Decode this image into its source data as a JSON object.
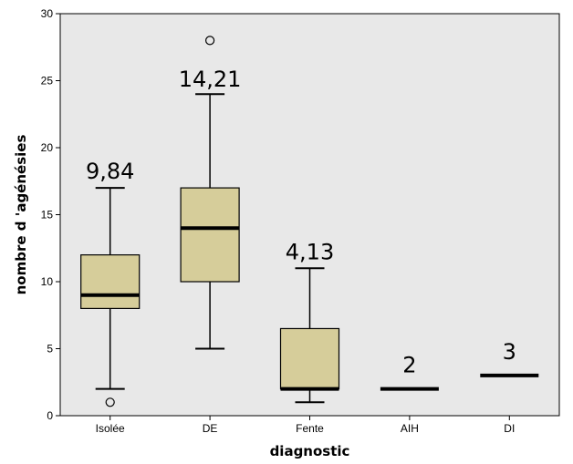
{
  "chart_data": {
    "type": "box",
    "xlabel": "diagnostic",
    "ylabel": "nombre d 'agénésies",
    "ylim": [
      0,
      30
    ],
    "yticks": [
      0,
      5,
      10,
      15,
      20,
      25,
      30
    ],
    "grid": false,
    "colors": {
      "plot_background": "#e8e8e8",
      "box_fill": "#d6cd9a",
      "stroke": "#000000"
    },
    "categories": [
      "Isolée",
      "DE",
      "Fente",
      "AIH",
      "DI"
    ],
    "boxes": [
      {
        "category": "Isolée",
        "whisker_low": 2,
        "q1": 8,
        "median": 9,
        "q3": 12,
        "whisker_high": 17,
        "outliers": [
          1
        ],
        "annotation": "9,84"
      },
      {
        "category": "DE",
        "whisker_low": 5,
        "q1": 10,
        "median": 14,
        "q3": 17,
        "whisker_high": 24,
        "outliers": [
          28
        ],
        "annotation": "14,21"
      },
      {
        "category": "Fente",
        "whisker_low": 1,
        "q1": 2,
        "median": 2,
        "q3": 6.5,
        "whisker_high": 11,
        "outliers": [],
        "annotation": "4,13"
      },
      {
        "category": "AIH",
        "whisker_low": 2,
        "q1": 2,
        "median": 2,
        "q3": 2,
        "whisker_high": 2,
        "outliers": [],
        "annotation": "2"
      },
      {
        "category": "DI",
        "whisker_low": 3,
        "q1": 3,
        "median": 3,
        "q3": 3,
        "whisker_high": 3,
        "outliers": [],
        "annotation": "3"
      }
    ]
  }
}
